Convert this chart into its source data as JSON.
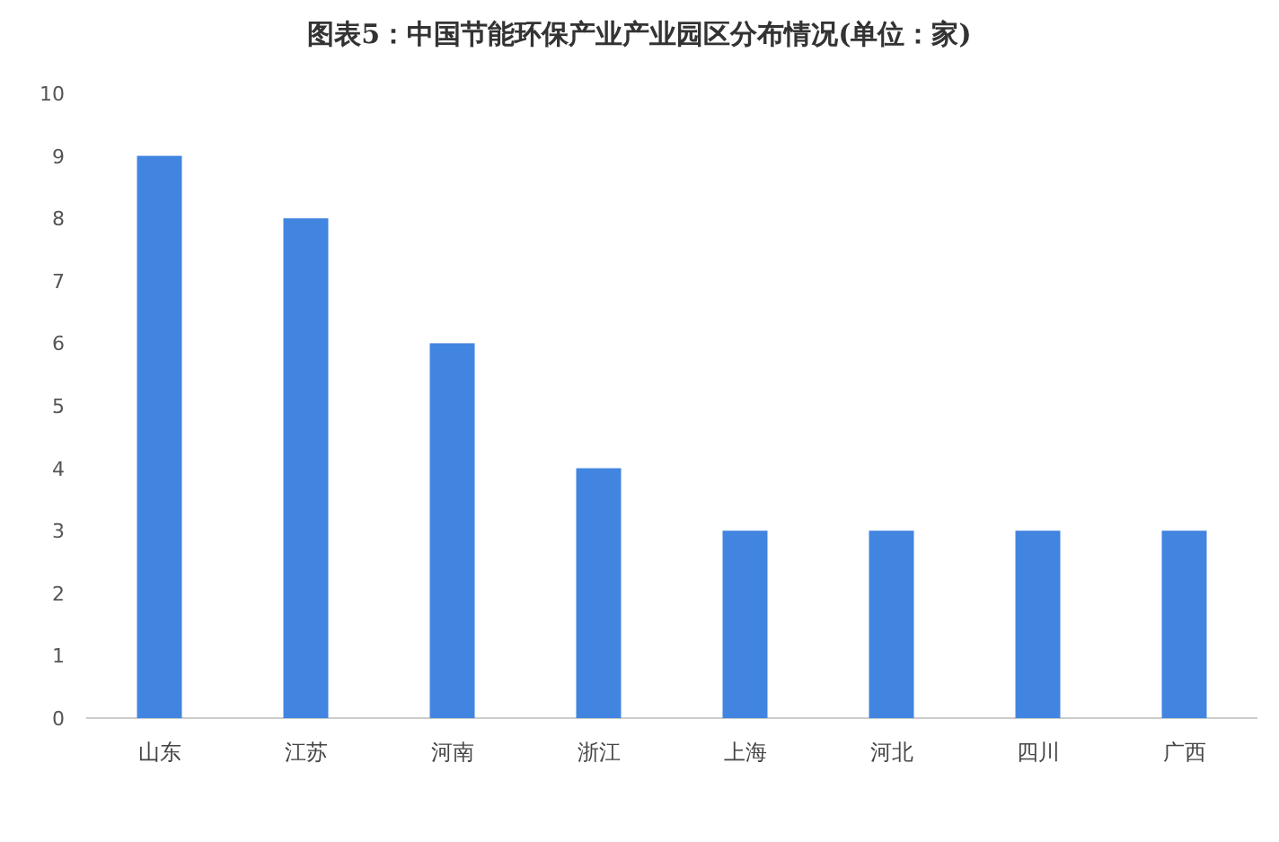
{
  "chart_data": {
    "type": "bar",
    "title": "图表5：中国节能环保产业产业园区分布情况(单位：家)",
    "categories": [
      "山东",
      "江苏",
      "河南",
      "浙江",
      "上海",
      "河北",
      "四川",
      "广西"
    ],
    "values": [
      9,
      8,
      6,
      4,
      3,
      3,
      3,
      3
    ],
    "color": "#4285e0",
    "ylim": [
      0,
      10
    ],
    "yticks": [
      0,
      1,
      2,
      3,
      4,
      5,
      6,
      7,
      8,
      9,
      10
    ]
  }
}
